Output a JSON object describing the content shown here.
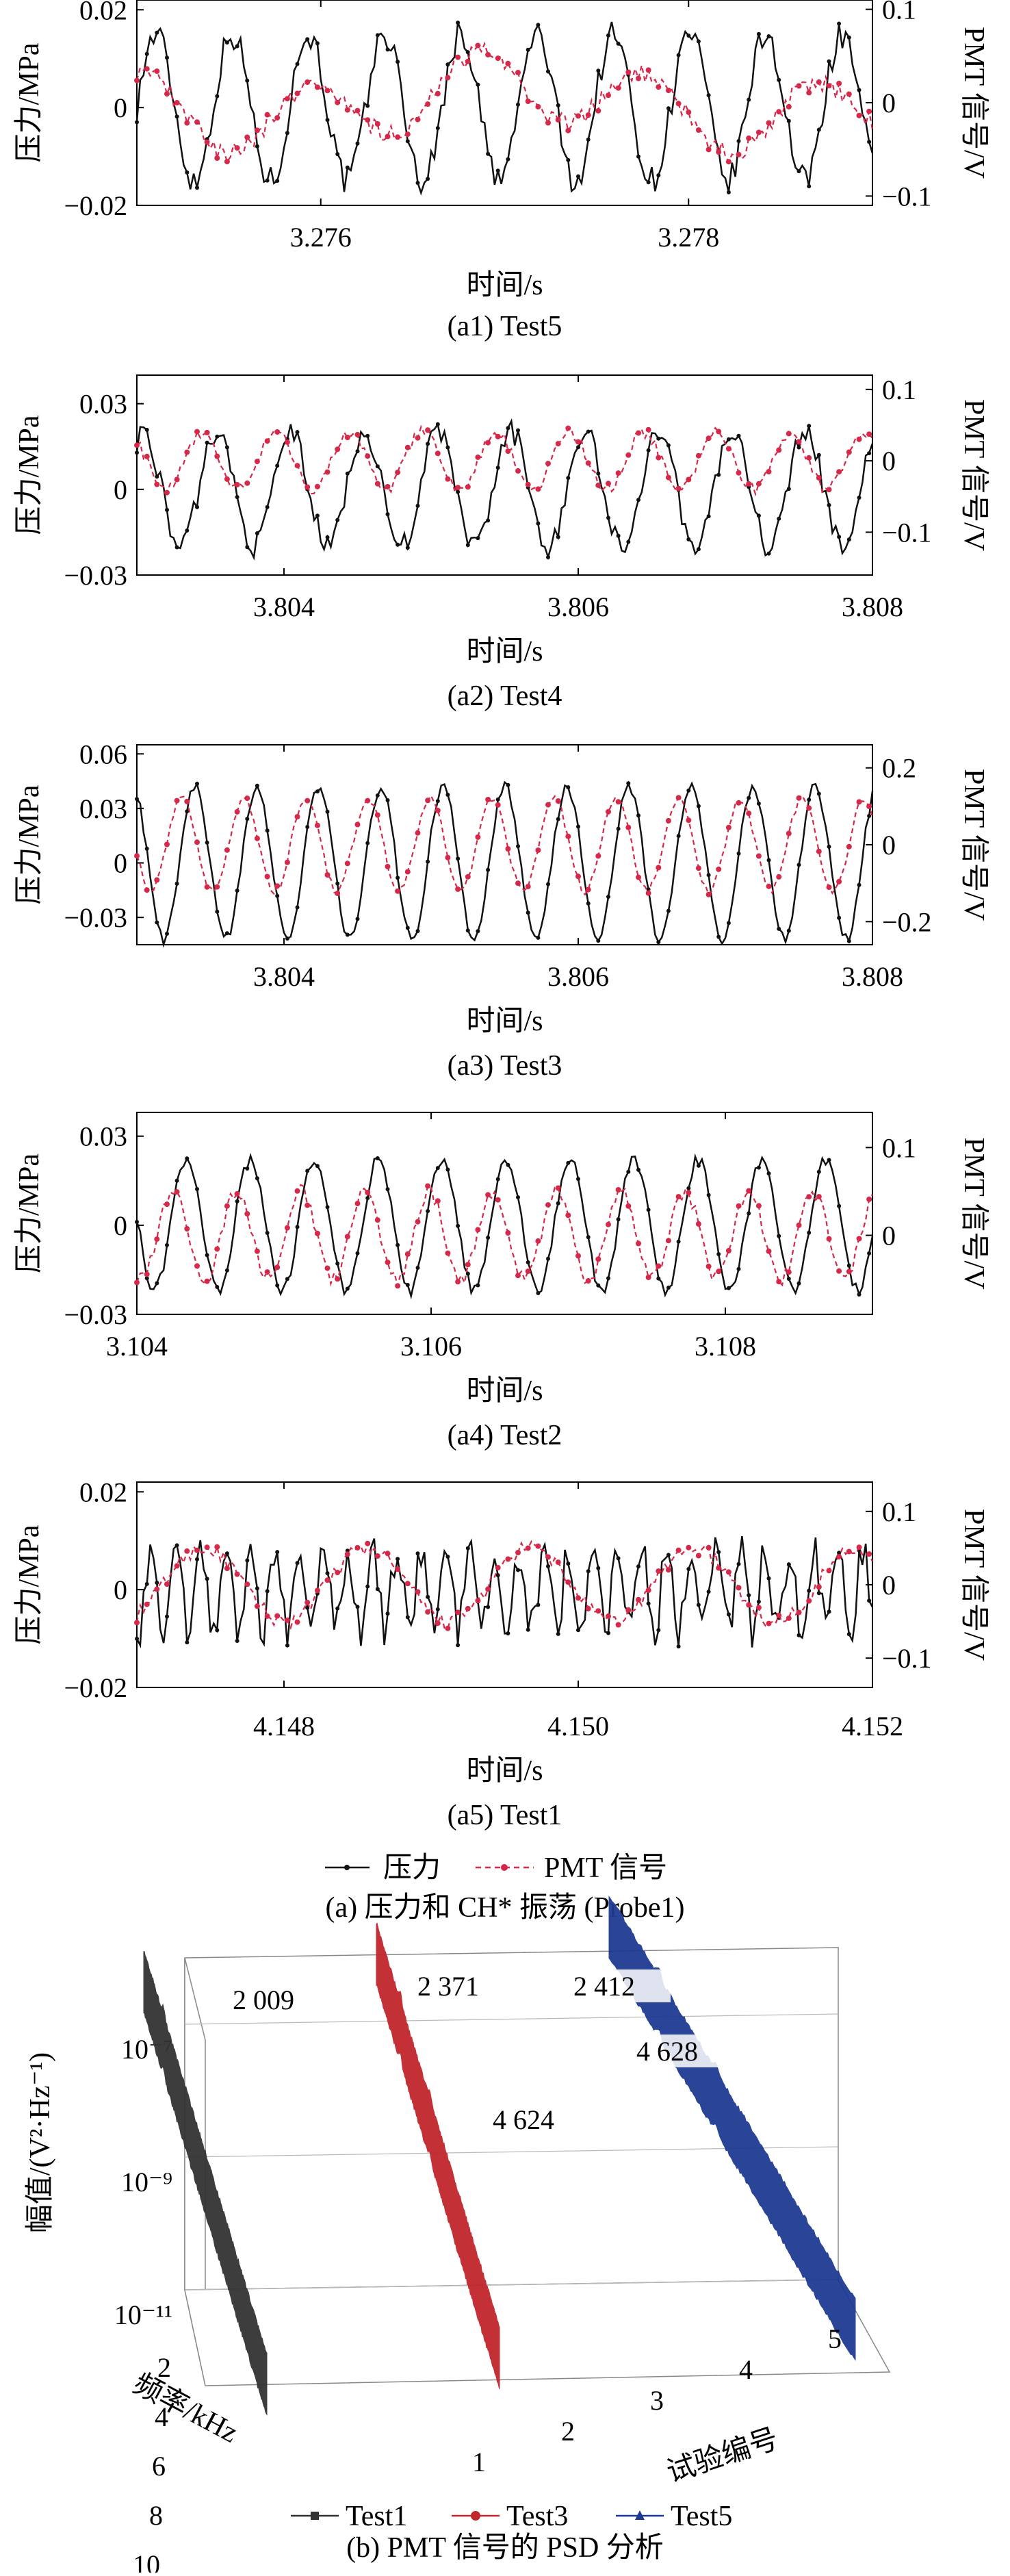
{
  "figure": {
    "caption_a": "(a) 压力和 CH* 振荡 (Probe1)",
    "caption_b": "(b) PMT 信号的 PSD 分析",
    "legend_a": {
      "pressure": "压力",
      "pmt": "PMT 信号"
    },
    "legend_b": [
      "Test1",
      "Test3",
      "Test5"
    ]
  },
  "colors": {
    "pressure": "#111111",
    "pmt": "#d6294a",
    "test1": "#333333",
    "test3": "#c0272d",
    "test5": "#1f3a93"
  },
  "chart_data": [
    {
      "type": "line",
      "caption": "(a1) Test5",
      "xlabel": "时间/s",
      "ylabel_left": "压力/MPa",
      "ylabel_right": "PMT 信号/V",
      "xlim": [
        3.275,
        3.279
      ],
      "xticks": [
        3.276,
        3.278
      ],
      "xtick_labels": [
        "3.276",
        "3.278"
      ],
      "ylim_left": [
        -0.02,
        0.022
      ],
      "yticks_left": [
        -0.02,
        0,
        0.02
      ],
      "ytick_labels_left": [
        "−0.02",
        "0",
        "0.02"
      ],
      "ylim_right": [
        -0.11,
        0.11
      ],
      "yticks_right": [
        -0.1,
        0,
        0.1
      ],
      "ytick_labels_right": [
        "−0.1",
        "0",
        "0.1"
      ],
      "series": [
        {
          "name": "压力",
          "axis": "left",
          "amp": 0.015,
          "freq": 2412,
          "noise": 0.003
        },
        {
          "name": "PMT 信号",
          "axis": "right",
          "amp": 0.035,
          "freq": 1100,
          "noise": 0.01,
          "baseline_shift": -0.05
        }
      ]
    },
    {
      "type": "line",
      "caption": "(a2) Test4",
      "xlabel": "时间/s",
      "ylabel_left": "压力/MPa",
      "ylabel_right": "PMT 信号/V",
      "xlim": [
        3.803,
        3.808
      ],
      "xticks": [
        3.804,
        3.806,
        3.808
      ],
      "xtick_labels": [
        "3.804",
        "3.806",
        "3.808"
      ],
      "ylim_left": [
        -0.03,
        0.04
      ],
      "yticks_left": [
        -0.03,
        0,
        0.03
      ],
      "ytick_labels_left": [
        "−0.03",
        "0",
        "0.03"
      ],
      "ylim_right": [
        -0.16,
        0.12
      ],
      "yticks_right": [
        -0.1,
        0,
        0.1
      ],
      "ytick_labels_right": [
        "−0.1",
        "0",
        "0.1"
      ],
      "series": [
        {
          "name": "压力",
          "axis": "left",
          "amp": 0.02,
          "freq": 2000,
          "noise": 0.004
        },
        {
          "name": "PMT 信号",
          "axis": "right",
          "amp": 0.04,
          "freq": 2000,
          "noise": 0.008
        }
      ]
    },
    {
      "type": "line",
      "caption": "(a3) Test3",
      "xlabel": "时间/s",
      "ylabel_left": "压力/MPa",
      "ylabel_right": "PMT 信号/V",
      "xlim": [
        3.803,
        3.808
      ],
      "xticks": [
        3.804,
        3.806,
        3.808
      ],
      "xtick_labels": [
        "3.804",
        "3.806",
        "3.808"
      ],
      "ylim_left": [
        -0.045,
        0.065
      ],
      "yticks_left": [
        -0.03,
        0,
        0.03,
        0.06
      ],
      "ytick_labels_left": [
        "−0.03",
        "0",
        "0.03",
        "0.06"
      ],
      "ylim_right": [
        -0.26,
        0.26
      ],
      "yticks_right": [
        -0.2,
        0,
        0.2
      ],
      "ytick_labels_right": [
        "−0.2",
        "0",
        "0.2"
      ],
      "series": [
        {
          "name": "压力",
          "axis": "left",
          "amp": 0.042,
          "freq": 2371,
          "noise": 0.003
        },
        {
          "name": "PMT 信号",
          "axis": "right",
          "amp": 0.12,
          "freq": 2371,
          "noise": 0.01
        }
      ]
    },
    {
      "type": "line",
      "caption": "(a4) Test2",
      "xlabel": "时间/s",
      "ylabel_left": "压力/MPa",
      "ylabel_right": "PMT 信号/V",
      "xlim": [
        3.104,
        3.109
      ],
      "xticks": [
        3.104,
        3.106,
        3.108
      ],
      "xtick_labels": [
        "3.104",
        "3.106",
        "3.108"
      ],
      "ylim_left": [
        -0.03,
        0.038
      ],
      "yticks_left": [
        -0.03,
        0,
        0.03
      ],
      "ytick_labels_left": [
        "−0.03",
        "0",
        "0.03"
      ],
      "ylim_right": [
        -0.09,
        0.14
      ],
      "yticks_right": [
        0,
        0.1
      ],
      "ytick_labels_right": [
        "0",
        "0.1"
      ],
      "series": [
        {
          "name": "压力",
          "axis": "left",
          "amp": 0.022,
          "freq": 2300,
          "noise": 0.002
        },
        {
          "name": "PMT 信号",
          "axis": "right",
          "amp": 0.05,
          "freq": 2300,
          "noise": 0.008
        }
      ]
    },
    {
      "type": "line",
      "caption": "(a5) Test1",
      "xlabel": "时间/s",
      "ylabel_left": "压力/MPa",
      "ylabel_right": "PMT 信号/V",
      "xlim": [
        4.147,
        4.152
      ],
      "xticks": [
        4.148,
        4.15,
        4.152
      ],
      "xtick_labels": [
        "4.148",
        "4.150",
        "4.152"
      ],
      "ylim_left": [
        -0.02,
        0.022
      ],
      "yticks_left": [
        -0.02,
        0,
        0.02
      ],
      "ytick_labels_left": [
        "−0.02",
        "0",
        "0.02"
      ],
      "ylim_right": [
        -0.14,
        0.14
      ],
      "yticks_right": [
        -0.1,
        0,
        0.1
      ],
      "ytick_labels_right": [
        "−0.1",
        "0",
        "0.1"
      ],
      "series": [
        {
          "name": "压力",
          "axis": "left",
          "amp": 0.008,
          "freq": 6000,
          "noise": 0.004
        },
        {
          "name": "PMT 信号",
          "axis": "right",
          "amp": 0.05,
          "freq": 900,
          "noise": 0.01
        }
      ]
    },
    {
      "type": "area",
      "projection": "3d",
      "caption": "(b) PMT 信号的 PSD 分析",
      "xlabel": "频率/kHz",
      "ylabel": "试验编号",
      "zlabel": "幅值/(V²·Hz⁻¹)",
      "z_scale": "log",
      "zlim": [
        1e-11,
        1e-06
      ],
      "zticks": [
        1e-11,
        1e-09,
        1e-07
      ],
      "ztick_labels": [
        "10⁻¹¹",
        "10⁻⁹",
        "10⁻⁷"
      ],
      "xticks": [
        2,
        4,
        6,
        8,
        10
      ],
      "xtick_labels": [
        "2",
        "4",
        "6",
        "8",
        "10"
      ],
      "yticks": [
        1,
        2,
        3,
        4,
        5
      ],
      "ytick_labels": [
        "1",
        "2",
        "3",
        "4",
        "5"
      ],
      "series": [
        {
          "name": "Test1",
          "test": 1,
          "peaks_hz": [
            2009
          ]
        },
        {
          "name": "Test3",
          "test": 3,
          "peaks_hz": [
            2371,
            4624
          ]
        },
        {
          "name": "Test5",
          "test": 5,
          "peaks_hz": [
            2412,
            4628
          ]
        }
      ],
      "annotations": [
        "2 009",
        "2 371",
        "2 412",
        "4 624",
        "4 628"
      ]
    }
  ]
}
